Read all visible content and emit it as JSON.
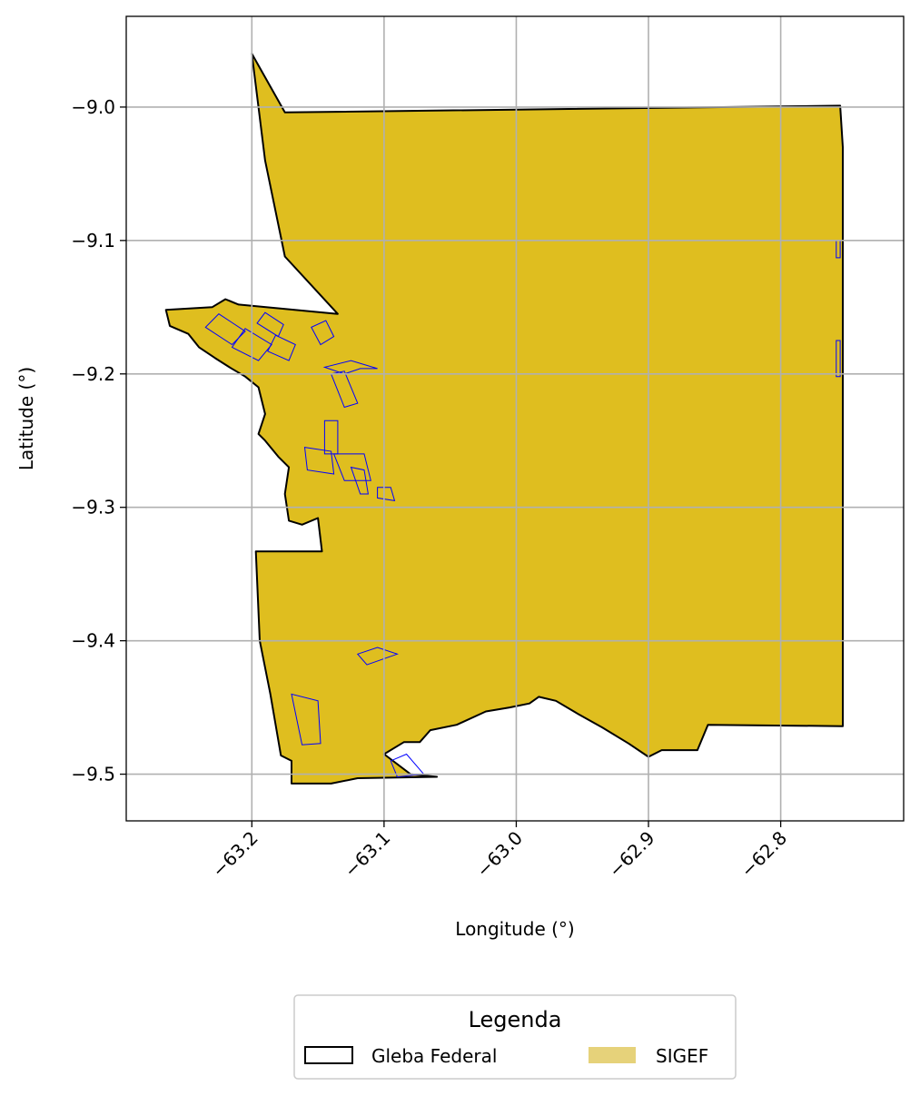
{
  "chart_data": {
    "type": "map",
    "xlabel": "Longitude (°)",
    "ylabel": "Latitude (°)",
    "xlim": [
      -63.295,
      -62.707
    ],
    "ylim": [
      -9.535,
      -8.932
    ],
    "x_ticks": [
      -63.2,
      -63.1,
      -63.0,
      -62.9,
      -62.8
    ],
    "x_tick_labels": [
      "−63.2",
      "−63.1",
      "−63.0",
      "−62.9",
      "−62.8"
    ],
    "y_ticks": [
      -9.0,
      -9.1,
      -9.2,
      -9.3,
      -9.4,
      -9.5
    ],
    "y_tick_labels": [
      "−9.0",
      "−9.1",
      "−9.2",
      "−9.3",
      "−9.4",
      "−9.5"
    ],
    "grid": true,
    "legend": {
      "title": "Legenda",
      "placement": "bottom-center",
      "entries": [
        {
          "label": "Gleba Federal",
          "style": "outline",
          "color": "#000000"
        },
        {
          "label": "SIGEF",
          "style": "fill",
          "color": "#e6d27a"
        }
      ]
    },
    "colors": {
      "gleba_fill": "#dfbe1f",
      "gleba_edge": "#000000",
      "sigef_edge": "#0000ff",
      "grid": "#b0b0b0"
    },
    "gleba_outline": [
      [
        -63.2,
        -8.96
      ],
      [
        -63.175,
        -9.004
      ],
      [
        -62.755,
        -8.999
      ],
      [
        -62.753,
        -9.03
      ],
      [
        -62.753,
        -9.4
      ],
      [
        -62.753,
        -9.464
      ],
      [
        -62.855,
        -9.463
      ],
      [
        -62.863,
        -9.482
      ],
      [
        -62.89,
        -9.482
      ],
      [
        -62.9,
        -9.487
      ],
      [
        -62.915,
        -9.477
      ],
      [
        -62.935,
        -9.465
      ],
      [
        -62.953,
        -9.455
      ],
      [
        -62.97,
        -9.445
      ],
      [
        -62.983,
        -9.442
      ],
      [
        -62.99,
        -9.447
      ],
      [
        -63.005,
        -9.45
      ],
      [
        -63.023,
        -9.453
      ],
      [
        -63.045,
        -9.463
      ],
      [
        -63.065,
        -9.467
      ],
      [
        -63.073,
        -9.476
      ],
      [
        -63.085,
        -9.476
      ],
      [
        -63.1,
        -9.485
      ],
      [
        -63.08,
        -9.5
      ],
      [
        -63.06,
        -9.502
      ],
      [
        -63.12,
        -9.503
      ],
      [
        -63.14,
        -9.507
      ],
      [
        -63.17,
        -9.507
      ],
      [
        -63.17,
        -9.49
      ],
      [
        -63.178,
        -9.486
      ],
      [
        -63.186,
        -9.44
      ],
      [
        -63.194,
        -9.4
      ],
      [
        -63.197,
        -9.333
      ],
      [
        -63.173,
        -9.333
      ],
      [
        -63.147,
        -9.333
      ],
      [
        -63.15,
        -9.308
      ],
      [
        -63.162,
        -9.313
      ],
      [
        -63.172,
        -9.31
      ],
      [
        -63.175,
        -9.29
      ],
      [
        -63.172,
        -9.27
      ],
      [
        -63.18,
        -9.262
      ],
      [
        -63.19,
        -9.25
      ],
      [
        -63.195,
        -9.245
      ],
      [
        -63.19,
        -9.23
      ],
      [
        -63.195,
        -9.21
      ],
      [
        -63.205,
        -9.202
      ],
      [
        -63.217,
        -9.195
      ],
      [
        -63.228,
        -9.188
      ],
      [
        -63.24,
        -9.18
      ],
      [
        -63.248,
        -9.17
      ],
      [
        -63.262,
        -9.164
      ],
      [
        -63.265,
        -9.152
      ],
      [
        -63.23,
        -9.15
      ],
      [
        -63.22,
        -9.144
      ],
      [
        -63.21,
        -9.148
      ],
      [
        -63.135,
        -9.155
      ],
      [
        -63.175,
        -9.112
      ],
      [
        -63.19,
        -9.04
      ],
      [
        -63.2,
        -8.96
      ]
    ],
    "sigef_parcels": [
      [
        [
          -63.235,
          -9.165
        ],
        [
          -63.215,
          -9.178
        ],
        [
          -63.205,
          -9.168
        ],
        [
          -63.225,
          -9.155
        ]
      ],
      [
        [
          -63.215,
          -9.18
        ],
        [
          -63.195,
          -9.19
        ],
        [
          -63.185,
          -9.178
        ],
        [
          -63.205,
          -9.166
        ]
      ],
      [
        [
          -63.196,
          -9.162
        ],
        [
          -63.18,
          -9.172
        ],
        [
          -63.176,
          -9.163
        ],
        [
          -63.19,
          -9.154
        ]
      ],
      [
        [
          -63.188,
          -9.183
        ],
        [
          -63.172,
          -9.19
        ],
        [
          -63.167,
          -9.178
        ],
        [
          -63.182,
          -9.171
        ]
      ],
      [
        [
          -63.155,
          -9.165
        ],
        [
          -63.148,
          -9.178
        ],
        [
          -63.138,
          -9.172
        ],
        [
          -63.144,
          -9.16
        ]
      ],
      [
        [
          -63.145,
          -9.195
        ],
        [
          -63.13,
          -9.2
        ],
        [
          -63.118,
          -9.196
        ],
        [
          -63.105,
          -9.196
        ],
        [
          -63.125,
          -9.19
        ]
      ],
      [
        [
          -63.14,
          -9.2
        ],
        [
          -63.13,
          -9.225
        ],
        [
          -63.12,
          -9.222
        ],
        [
          -63.13,
          -9.198
        ]
      ],
      [
        [
          -63.145,
          -9.235
        ],
        [
          -63.135,
          -9.235
        ],
        [
          -63.135,
          -9.26
        ],
        [
          -63.145,
          -9.26
        ]
      ],
      [
        [
          -63.16,
          -9.255
        ],
        [
          -63.14,
          -9.258
        ],
        [
          -63.138,
          -9.275
        ],
        [
          -63.158,
          -9.272
        ]
      ],
      [
        [
          -63.138,
          -9.26
        ],
        [
          -63.115,
          -9.26
        ],
        [
          -63.11,
          -9.28
        ],
        [
          -63.13,
          -9.28
        ]
      ],
      [
        [
          -63.125,
          -9.27
        ],
        [
          -63.118,
          -9.29
        ],
        [
          -63.112,
          -9.29
        ],
        [
          -63.115,
          -9.272
        ]
      ],
      [
        [
          -63.105,
          -9.285
        ],
        [
          -63.095,
          -9.285
        ],
        [
          -63.092,
          -9.295
        ],
        [
          -63.105,
          -9.293
        ]
      ],
      [
        [
          -63.12,
          -9.41
        ],
        [
          -63.105,
          -9.405
        ],
        [
          -63.09,
          -9.41
        ],
        [
          -63.113,
          -9.418
        ]
      ],
      [
        [
          -63.17,
          -9.44
        ],
        [
          -63.162,
          -9.478
        ],
        [
          -63.148,
          -9.477
        ],
        [
          -63.15,
          -9.445
        ]
      ],
      [
        [
          -63.095,
          -9.49
        ],
        [
          -63.083,
          -9.485
        ],
        [
          -63.07,
          -9.5
        ],
        [
          -63.09,
          -9.502
        ]
      ],
      [
        [
          -62.758,
          -9.1
        ],
        [
          -62.755,
          -9.1
        ],
        [
          -62.755,
          -9.113
        ],
        [
          -62.758,
          -9.113
        ]
      ],
      [
        [
          -62.758,
          -9.175
        ],
        [
          -62.755,
          -9.175
        ],
        [
          -62.755,
          -9.202
        ],
        [
          -62.758,
          -9.202
        ]
      ]
    ]
  }
}
